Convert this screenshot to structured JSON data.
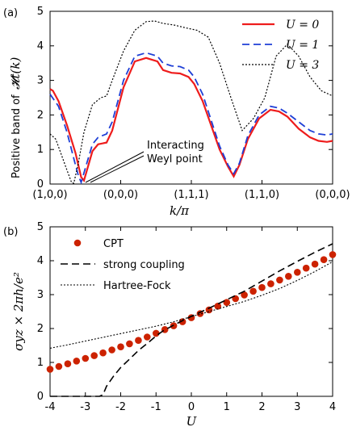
{
  "chart_data": [
    {
      "type": "line",
      "panel_label": "(a)",
      "ylabel": "Positive band of",
      "ylabel_math": "𝓗t(k)",
      "xlabel": "k/π",
      "ylim": [
        0,
        5
      ],
      "xlim": [
        0,
        5
      ],
      "yticks": [
        "0",
        "1",
        "2",
        "3",
        "4",
        "5"
      ],
      "xtick_labels": [
        "(1,0,0)",
        "(0,0,0)",
        "(1,1,1)",
        "(1,1,0)",
        "(0,0,0)"
      ],
      "legend": "top-right",
      "annotation": [
        "Interacting",
        "Weyl point"
      ],
      "series": [
        {
          "name": "U = 0",
          "color": "#ee1c1c",
          "style": "solid",
          "x": [
            0,
            0.05,
            0.15,
            0.3,
            0.45,
            0.55,
            0.6,
            0.75,
            0.85,
            1.0,
            1.1,
            1.3,
            1.5,
            1.7,
            1.9,
            2.0,
            2.15,
            2.3,
            2.45,
            2.55,
            2.7,
            2.85,
            3.0,
            3.15,
            3.25,
            3.35,
            3.5,
            3.7,
            3.9,
            4.05,
            4.2,
            4.4,
            4.6,
            4.75,
            4.9,
            5.0
          ],
          "y": [
            2.75,
            2.7,
            2.4,
            1.7,
            0.9,
            0.2,
            0.1,
            0.95,
            1.15,
            1.2,
            1.55,
            2.8,
            3.55,
            3.65,
            3.55,
            3.3,
            3.22,
            3.2,
            3.1,
            2.9,
            2.4,
            1.7,
            1.0,
            0.5,
            0.22,
            0.55,
            1.3,
            1.9,
            2.15,
            2.1,
            1.95,
            1.6,
            1.35,
            1.25,
            1.22,
            1.25
          ]
        },
        {
          "name": "U = 1",
          "color": "#1f3fd6",
          "style": "dashed",
          "x": [
            0,
            0.15,
            0.3,
            0.45,
            0.5,
            0.55,
            0.65,
            0.75,
            0.85,
            1.0,
            1.1,
            1.3,
            1.5,
            1.7,
            1.9,
            2.0,
            2.15,
            2.3,
            2.45,
            2.55,
            2.7,
            2.85,
            3.0,
            3.15,
            3.25,
            3.35,
            3.5,
            3.7,
            3.9,
            4.05,
            4.2,
            4.4,
            4.6,
            4.75,
            4.9,
            5.0
          ],
          "y": [
            2.6,
            2.25,
            1.5,
            0.55,
            0.25,
            0.05,
            0.6,
            1.15,
            1.35,
            1.45,
            1.8,
            3.0,
            3.7,
            3.8,
            3.7,
            3.5,
            3.42,
            3.4,
            3.3,
            3.1,
            2.6,
            1.85,
            1.1,
            0.55,
            0.3,
            0.6,
            1.4,
            2.0,
            2.25,
            2.2,
            2.05,
            1.8,
            1.55,
            1.45,
            1.42,
            1.45
          ]
        },
        {
          "name": "U = 3",
          "color": "#000000",
          "style": "dotted",
          "x": [
            0,
            0.1,
            0.2,
            0.3,
            0.38,
            0.42,
            0.5,
            0.6,
            0.75,
            0.9,
            1.0,
            1.1,
            1.3,
            1.5,
            1.7,
            1.85,
            2.0,
            2.2,
            2.4,
            2.6,
            2.8,
            3.0,
            3.2,
            3.4,
            3.6,
            3.8,
            4.0,
            4.2,
            4.4,
            4.6,
            4.8,
            5.0
          ],
          "y": [
            1.45,
            1.3,
            0.85,
            0.4,
            0.05,
            0.02,
            0.6,
            1.5,
            2.3,
            2.5,
            2.55,
            3.0,
            3.85,
            4.45,
            4.7,
            4.72,
            4.65,
            4.6,
            4.52,
            4.45,
            4.25,
            3.5,
            2.5,
            1.55,
            1.9,
            2.5,
            3.7,
            4.05,
            3.7,
            3.1,
            2.7,
            2.55
          ]
        }
      ]
    },
    {
      "type": "scatter",
      "panel_label": "(b)",
      "ylabel_math": "σyz × 2πh/e²",
      "xlabel": "U",
      "xlim": [
        -4,
        4
      ],
      "ylim": [
        0,
        5
      ],
      "xticks": [
        "-4",
        "-3",
        "-2",
        "-1",
        "0",
        "1",
        "2",
        "3",
        "4"
      ],
      "yticks": [
        "0",
        "1",
        "2",
        "3",
        "4",
        "5"
      ],
      "legend": "top-left",
      "series": [
        {
          "name": "CPT",
          "color": "#cc2200",
          "style": "markers",
          "x": [
            -4.0,
            -3.75,
            -3.5,
            -3.25,
            -3.0,
            -2.75,
            -2.5,
            -2.25,
            -2.0,
            -1.75,
            -1.5,
            -1.25,
            -1.0,
            -0.75,
            -0.5,
            -0.25,
            0.0,
            0.25,
            0.5,
            0.75,
            1.0,
            1.25,
            1.5,
            1.75,
            2.0,
            2.25,
            2.5,
            2.75,
            3.0,
            3.25,
            3.5,
            3.75,
            4.0
          ],
          "y": [
            0.8,
            0.88,
            0.96,
            1.04,
            1.12,
            1.2,
            1.28,
            1.37,
            1.46,
            1.55,
            1.65,
            1.75,
            1.86,
            1.97,
            2.08,
            2.2,
            2.32,
            2.44,
            2.55,
            2.66,
            2.77,
            2.88,
            2.99,
            3.1,
            3.21,
            3.32,
            3.43,
            3.54,
            3.66,
            3.78,
            3.9,
            4.03,
            4.18
          ]
        },
        {
          "name": "strong coupling",
          "color": "#000000",
          "style": "dashed",
          "x": [
            -4.0,
            -2.6,
            -2.5,
            -2.4,
            -2.2,
            -2.0,
            -1.8,
            -1.5,
            -1.2,
            -1.0,
            -0.8,
            -0.5,
            -0.2,
            0.0,
            0.5,
            1.0,
            1.5,
            2.0,
            2.5,
            3.0,
            3.5,
            4.0
          ],
          "y": [
            0.0,
            0.0,
            0.05,
            0.3,
            0.6,
            0.85,
            1.05,
            1.35,
            1.6,
            1.78,
            1.93,
            2.1,
            2.26,
            2.36,
            2.6,
            2.85,
            3.1,
            3.4,
            3.7,
            3.98,
            4.25,
            4.5
          ]
        },
        {
          "name": "Hartree-Fock",
          "color": "#000000",
          "style": "dotted",
          "x": [
            -4.0,
            -3.5,
            -3.0,
            -2.5,
            -2.0,
            -1.5,
            -1.0,
            -0.5,
            0.0,
            0.5,
            1.0,
            1.5,
            2.0,
            2.5,
            3.0,
            3.5,
            4.0
          ],
          "y": [
            1.42,
            1.52,
            1.63,
            1.74,
            1.85,
            1.96,
            2.07,
            2.2,
            2.35,
            2.5,
            2.65,
            2.8,
            2.98,
            3.18,
            3.42,
            3.68,
            3.97
          ]
        }
      ]
    }
  ]
}
